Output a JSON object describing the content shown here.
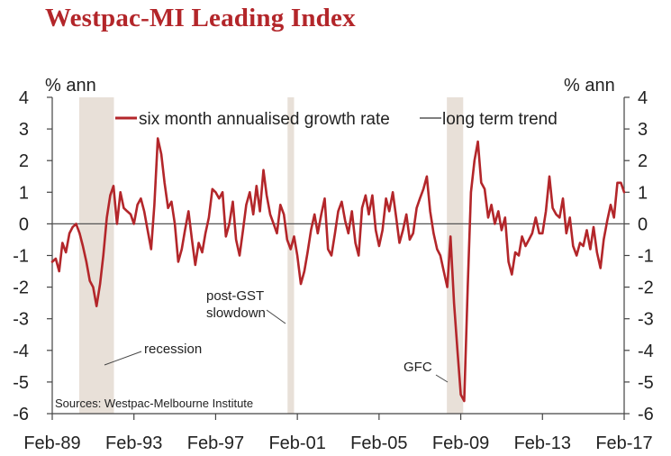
{
  "title": "Westpac-MI Leading Index",
  "chart_data": {
    "type": "line",
    "title": "Westpac-MI Leading Index",
    "ylabel_left": "% ann",
    "ylabel_right": "% ann",
    "ylim": [
      -6,
      4
    ],
    "yticks": [
      4,
      3,
      2,
      1,
      0,
      -1,
      -2,
      -3,
      -4,
      -5,
      -6
    ],
    "xlim": [
      1989.08,
      2017.08
    ],
    "xticks": [
      {
        "label": "Feb-89",
        "x": 1989.08
      },
      {
        "label": "Feb-93",
        "x": 1993.08
      },
      {
        "label": "Feb-97",
        "x": 1997.08
      },
      {
        "label": "Feb-01",
        "x": 2001.08
      },
      {
        "label": "Feb-05",
        "x": 2005.08
      },
      {
        "label": "Feb-09",
        "x": 2009.08
      },
      {
        "label": "Feb-13",
        "x": 2013.08
      },
      {
        "label": "Feb-17",
        "x": 2017.08
      }
    ],
    "shaded_periods": [
      {
        "start": 1990.4,
        "end": 1992.1
      },
      {
        "start": 2000.6,
        "end": 2000.92
      },
      {
        "start": 2008.4,
        "end": 2009.2
      }
    ],
    "legend": {
      "position": "top",
      "entries": [
        {
          "label": "six month annualised growth rate",
          "color": "#b3262a"
        },
        {
          "label": "long term trend",
          "color": "#555555"
        }
      ]
    },
    "trend_value": 0,
    "annotations": [
      {
        "text": "recession"
      },
      {
        "text": "post-GST"
      },
      {
        "text": "slowdown"
      },
      {
        "text": "GFC"
      }
    ],
    "source": "Sources: Westpac-Melbourne Institute",
    "series": [
      {
        "name": "six month annualised growth rate",
        "color": "#b3262a",
        "points": [
          [
            1989.08,
            -1.2
          ],
          [
            1989.25,
            -1.1
          ],
          [
            1989.42,
            -1.5
          ],
          [
            1989.58,
            -0.6
          ],
          [
            1989.75,
            -0.9
          ],
          [
            1989.92,
            -0.3
          ],
          [
            1990.08,
            -0.1
          ],
          [
            1990.25,
            0.0
          ],
          [
            1990.42,
            -0.3
          ],
          [
            1990.58,
            -0.7
          ],
          [
            1990.75,
            -1.2
          ],
          [
            1990.92,
            -1.8
          ],
          [
            1991.08,
            -2.0
          ],
          [
            1991.25,
            -2.6
          ],
          [
            1991.42,
            -1.9
          ],
          [
            1991.58,
            -1.0
          ],
          [
            1991.75,
            0.2
          ],
          [
            1991.92,
            0.9
          ],
          [
            1992.08,
            1.2
          ],
          [
            1992.25,
            0.0
          ],
          [
            1992.42,
            1.0
          ],
          [
            1992.58,
            0.5
          ],
          [
            1992.75,
            0.4
          ],
          [
            1992.92,
            0.3
          ],
          [
            1993.08,
            0.0
          ],
          [
            1993.25,
            0.6
          ],
          [
            1993.42,
            0.8
          ],
          [
            1993.58,
            0.4
          ],
          [
            1993.75,
            -0.2
          ],
          [
            1993.92,
            -0.8
          ],
          [
            1994.08,
            0.6
          ],
          [
            1994.25,
            2.7
          ],
          [
            1994.42,
            2.2
          ],
          [
            1994.58,
            1.3
          ],
          [
            1994.75,
            0.5
          ],
          [
            1994.92,
            0.7
          ],
          [
            1995.08,
            0.0
          ],
          [
            1995.25,
            -1.2
          ],
          [
            1995.42,
            -0.8
          ],
          [
            1995.58,
            -0.2
          ],
          [
            1995.75,
            0.4
          ],
          [
            1995.92,
            -0.5
          ],
          [
            1996.08,
            -1.3
          ],
          [
            1996.25,
            -0.6
          ],
          [
            1996.42,
            -0.9
          ],
          [
            1996.58,
            -0.3
          ],
          [
            1996.75,
            0.2
          ],
          [
            1996.92,
            1.1
          ],
          [
            1997.08,
            1.0
          ],
          [
            1997.25,
            0.8
          ],
          [
            1997.42,
            1.0
          ],
          [
            1997.58,
            -0.4
          ],
          [
            1997.75,
            0.0
          ],
          [
            1997.92,
            0.7
          ],
          [
            1998.08,
            -0.5
          ],
          [
            1998.25,
            -1.0
          ],
          [
            1998.42,
            -0.2
          ],
          [
            1998.58,
            0.6
          ],
          [
            1998.75,
            1.0
          ],
          [
            1998.92,
            0.3
          ],
          [
            1999.08,
            1.2
          ],
          [
            1999.25,
            0.4
          ],
          [
            1999.42,
            1.7
          ],
          [
            1999.58,
            0.9
          ],
          [
            1999.75,
            0.3
          ],
          [
            1999.92,
            0.0
          ],
          [
            2000.08,
            -0.3
          ],
          [
            2000.25,
            0.6
          ],
          [
            2000.42,
            0.3
          ],
          [
            2000.58,
            -0.5
          ],
          [
            2000.75,
            -0.8
          ],
          [
            2000.92,
            -0.4
          ],
          [
            2001.08,
            -1.0
          ],
          [
            2001.25,
            -1.9
          ],
          [
            2001.42,
            -1.5
          ],
          [
            2001.58,
            -0.9
          ],
          [
            2001.75,
            -0.2
          ],
          [
            2001.92,
            0.3
          ],
          [
            2002.08,
            -0.3
          ],
          [
            2002.25,
            0.3
          ],
          [
            2002.42,
            0.8
          ],
          [
            2002.58,
            -0.8
          ],
          [
            2002.75,
            -1.0
          ],
          [
            2002.92,
            -0.3
          ],
          [
            2003.08,
            0.4
          ],
          [
            2003.25,
            0.7
          ],
          [
            2003.42,
            0.1
          ],
          [
            2003.58,
            -0.3
          ],
          [
            2003.75,
            0.4
          ],
          [
            2003.92,
            -0.6
          ],
          [
            2004.08,
            -1.0
          ],
          [
            2004.25,
            0.5
          ],
          [
            2004.42,
            0.9
          ],
          [
            2004.58,
            0.3
          ],
          [
            2004.75,
            0.9
          ],
          [
            2004.92,
            -0.2
          ],
          [
            2005.08,
            -0.7
          ],
          [
            2005.25,
            -0.2
          ],
          [
            2005.42,
            0.8
          ],
          [
            2005.58,
            0.4
          ],
          [
            2005.75,
            1.0
          ],
          [
            2005.92,
            0.2
          ],
          [
            2006.08,
            -0.6
          ],
          [
            2006.25,
            -0.2
          ],
          [
            2006.42,
            0.3
          ],
          [
            2006.58,
            -0.5
          ],
          [
            2006.75,
            -0.3
          ],
          [
            2006.92,
            0.5
          ],
          [
            2007.08,
            0.8
          ],
          [
            2007.25,
            1.1
          ],
          [
            2007.42,
            1.5
          ],
          [
            2007.58,
            0.4
          ],
          [
            2007.75,
            -0.3
          ],
          [
            2007.92,
            -0.8
          ],
          [
            2008.08,
            -1.0
          ],
          [
            2008.25,
            -1.5
          ],
          [
            2008.42,
            -2.0
          ],
          [
            2008.58,
            -0.4
          ],
          [
            2008.75,
            -2.5
          ],
          [
            2008.92,
            -4.0
          ],
          [
            2009.08,
            -5.4
          ],
          [
            2009.25,
            -5.6
          ],
          [
            2009.42,
            -2.0
          ],
          [
            2009.58,
            1.0
          ],
          [
            2009.75,
            2.0
          ],
          [
            2009.92,
            2.6
          ],
          [
            2010.08,
            1.3
          ],
          [
            2010.25,
            1.1
          ],
          [
            2010.42,
            0.2
          ],
          [
            2010.58,
            0.6
          ],
          [
            2010.75,
            0.0
          ],
          [
            2010.92,
            0.4
          ],
          [
            2011.08,
            -0.2
          ],
          [
            2011.25,
            0.2
          ],
          [
            2011.42,
            -1.2
          ],
          [
            2011.58,
            -1.6
          ],
          [
            2011.75,
            -0.9
          ],
          [
            2011.92,
            -1.0
          ],
          [
            2012.08,
            -0.4
          ],
          [
            2012.25,
            -0.7
          ],
          [
            2012.42,
            -0.5
          ],
          [
            2012.58,
            -0.3
          ],
          [
            2012.75,
            0.2
          ],
          [
            2012.92,
            -0.3
          ],
          [
            2013.08,
            -0.3
          ],
          [
            2013.25,
            0.4
          ],
          [
            2013.42,
            1.5
          ],
          [
            2013.58,
            0.5
          ],
          [
            2013.75,
            0.3
          ],
          [
            2013.92,
            0.2
          ],
          [
            2014.08,
            0.8
          ],
          [
            2014.25,
            -0.3
          ],
          [
            2014.42,
            0.2
          ],
          [
            2014.58,
            -0.7
          ],
          [
            2014.75,
            -1.0
          ],
          [
            2014.92,
            -0.6
          ],
          [
            2015.08,
            -0.7
          ],
          [
            2015.25,
            -0.2
          ],
          [
            2015.42,
            -0.8
          ],
          [
            2015.58,
            -0.1
          ],
          [
            2015.75,
            -0.9
          ],
          [
            2015.92,
            -1.4
          ],
          [
            2016.08,
            -0.5
          ],
          [
            2016.25,
            0.1
          ],
          [
            2016.42,
            0.6
          ],
          [
            2016.58,
            0.2
          ],
          [
            2016.75,
            1.3
          ],
          [
            2016.92,
            1.3
          ],
          [
            2017.08,
            1.0
          ]
        ]
      }
    ]
  }
}
